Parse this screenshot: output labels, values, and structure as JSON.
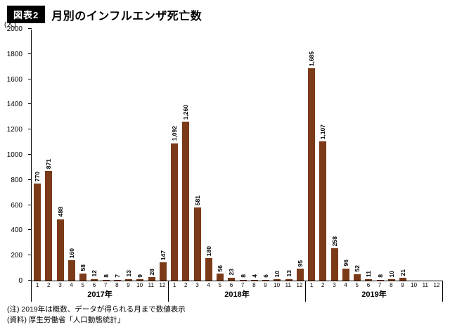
{
  "header": {
    "badge": "図表2",
    "title": "月別のインフルエンザ死亡数"
  },
  "chart_data": {
    "type": "bar",
    "title": "月別のインフルエンザ死亡数",
    "unit_label": "(人)",
    "bar_color": "#7b3a18",
    "ylim": [
      0,
      2000
    ],
    "grid": false,
    "yticks": [
      {
        "value": 0,
        "label": "0"
      },
      {
        "value": 200,
        "label": "200"
      },
      {
        "value": 400,
        "label": "400"
      },
      {
        "value": 600,
        "label": "600"
      },
      {
        "value": 800,
        "label": "800"
      },
      {
        "value": 1000,
        "label": "1000"
      },
      {
        "value": 1200,
        "label": "1200"
      },
      {
        "value": 1400,
        "label": "1400"
      },
      {
        "value": 1600,
        "label": "1600"
      },
      {
        "value": 1800,
        "label": "1800"
      },
      {
        "value": 2000,
        "label": "2000"
      }
    ],
    "groups": [
      {
        "year": "2017年",
        "months": [
          "1",
          "2",
          "3",
          "4",
          "5",
          "6",
          "7",
          "8",
          "9",
          "10",
          "11",
          "12"
        ],
        "values": [
          770,
          871,
          488,
          160,
          58,
          12,
          8,
          7,
          13,
          9,
          28,
          147
        ],
        "labels": [
          "770",
          "871",
          "488",
          "160",
          "58",
          "12",
          "8",
          "7",
          "13",
          "9",
          "28",
          "147"
        ]
      },
      {
        "year": "2018年",
        "months": [
          "1",
          "2",
          "3",
          "4",
          "5",
          "6",
          "7",
          "8",
          "9",
          "10",
          "11",
          "12"
        ],
        "values": [
          1092,
          1260,
          581,
          180,
          56,
          23,
          8,
          4,
          6,
          10,
          13,
          95
        ],
        "labels": [
          "1,092",
          "1,260",
          "581",
          "180",
          "56",
          "23",
          "8",
          "4",
          "6",
          "10",
          "13",
          "95"
        ]
      },
      {
        "year": "2019年",
        "months": [
          "1",
          "2",
          "3",
          "4",
          "5",
          "6",
          "7",
          "8",
          "9",
          "10",
          "11",
          "12"
        ],
        "values": [
          1685,
          1107,
          258,
          96,
          52,
          11,
          8,
          10,
          21,
          null,
          null,
          null
        ],
        "labels": [
          "1,685",
          "1,107",
          "258",
          "96",
          "52",
          "11",
          "8",
          "10",
          "21",
          "",
          "",
          ""
        ]
      }
    ]
  },
  "notes": {
    "line1": "(注) 2019年は概数、データが得られる月まで数値表示",
    "line2": "(資料) 厚生労働省「人口動態統計」"
  }
}
